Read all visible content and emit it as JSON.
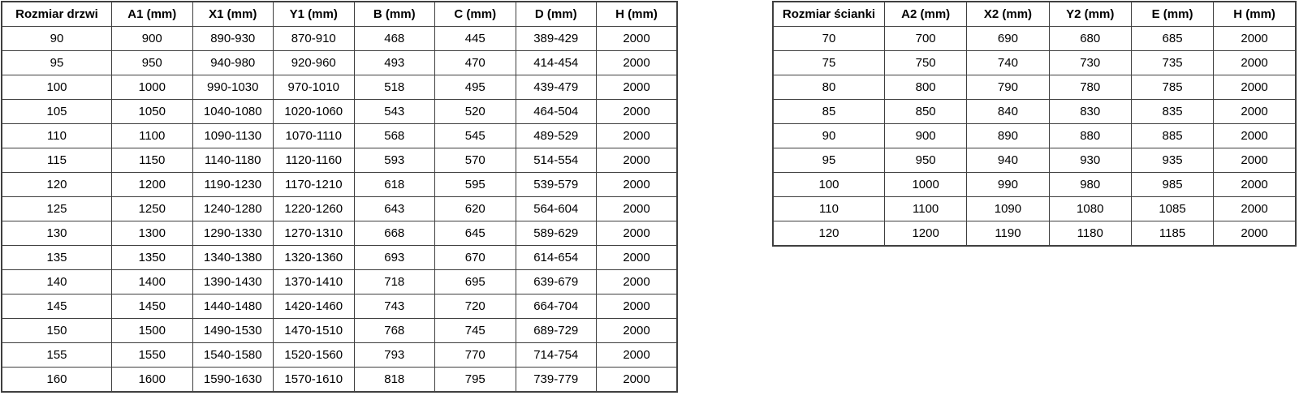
{
  "colors": {
    "background": "#ffffff",
    "border": "#3f3f3f",
    "text": "#000000"
  },
  "tables": [
    {
      "name": "door-size-table",
      "headers": [
        "Rozmiar drzwi",
        "A1 (mm)",
        "X1 (mm)",
        "Y1 (mm)",
        "B (mm)",
        "C (mm)",
        "D (mm)",
        "H (mm)"
      ],
      "rows": [
        [
          "90",
          "900",
          "890-930",
          "870-910",
          "468",
          "445",
          "389-429",
          "2000"
        ],
        [
          "95",
          "950",
          "940-980",
          "920-960",
          "493",
          "470",
          "414-454",
          "2000"
        ],
        [
          "100",
          "1000",
          "990-1030",
          "970-1010",
          "518",
          "495",
          "439-479",
          "2000"
        ],
        [
          "105",
          "1050",
          "1040-1080",
          "1020-1060",
          "543",
          "520",
          "464-504",
          "2000"
        ],
        [
          "110",
          "1100",
          "1090-1130",
          "1070-1110",
          "568",
          "545",
          "489-529",
          "2000"
        ],
        [
          "115",
          "1150",
          "1140-1180",
          "1120-1160",
          "593",
          "570",
          "514-554",
          "2000"
        ],
        [
          "120",
          "1200",
          "1190-1230",
          "1170-1210",
          "618",
          "595",
          "539-579",
          "2000"
        ],
        [
          "125",
          "1250",
          "1240-1280",
          "1220-1260",
          "643",
          "620",
          "564-604",
          "2000"
        ],
        [
          "130",
          "1300",
          "1290-1330",
          "1270-1310",
          "668",
          "645",
          "589-629",
          "2000"
        ],
        [
          "135",
          "1350",
          "1340-1380",
          "1320-1360",
          "693",
          "670",
          "614-654",
          "2000"
        ],
        [
          "140",
          "1400",
          "1390-1430",
          "1370-1410",
          "718",
          "695",
          "639-679",
          "2000"
        ],
        [
          "145",
          "1450",
          "1440-1480",
          "1420-1460",
          "743",
          "720",
          "664-704",
          "2000"
        ],
        [
          "150",
          "1500",
          "1490-1530",
          "1470-1510",
          "768",
          "745",
          "689-729",
          "2000"
        ],
        [
          "155",
          "1550",
          "1540-1580",
          "1520-1560",
          "793",
          "770",
          "714-754",
          "2000"
        ],
        [
          "160",
          "1600",
          "1590-1630",
          "1570-1610",
          "818",
          "795",
          "739-779",
          "2000"
        ]
      ]
    },
    {
      "name": "wall-size-table",
      "headers": [
        "Rozmiar ścianki",
        "A2 (mm)",
        "X2 (mm)",
        "Y2 (mm)",
        "E (mm)",
        "H (mm)"
      ],
      "rows": [
        [
          "70",
          "700",
          "690",
          "680",
          "685",
          "2000"
        ],
        [
          "75",
          "750",
          "740",
          "730",
          "735",
          "2000"
        ],
        [
          "80",
          "800",
          "790",
          "780",
          "785",
          "2000"
        ],
        [
          "85",
          "850",
          "840",
          "830",
          "835",
          "2000"
        ],
        [
          "90",
          "900",
          "890",
          "880",
          "885",
          "2000"
        ],
        [
          "95",
          "950",
          "940",
          "930",
          "935",
          "2000"
        ],
        [
          "100",
          "1000",
          "990",
          "980",
          "985",
          "2000"
        ],
        [
          "110",
          "1100",
          "1090",
          "1080",
          "1085",
          "2000"
        ],
        [
          "120",
          "1200",
          "1190",
          "1180",
          "1185",
          "2000"
        ]
      ]
    }
  ]
}
